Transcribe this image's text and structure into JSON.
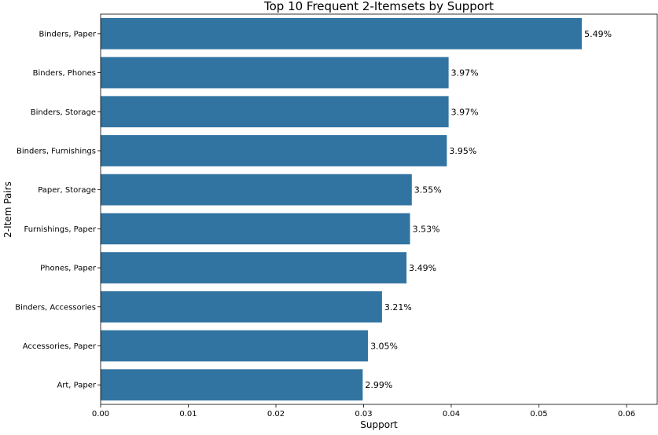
{
  "chart_data": {
    "type": "bar",
    "orientation": "horizontal",
    "title": "Top 10 Frequent 2-Itemsets by Support",
    "xlabel": "Support",
    "ylabel": "2-Item Pairs",
    "xlim": [
      0,
      0.0635
    ],
    "xticks": [
      "0.00",
      "0.01",
      "0.02",
      "0.03",
      "0.04",
      "0.05",
      "0.06"
    ],
    "grid": false,
    "color": "#3274a1",
    "categories": [
      "Binders, Paper",
      "Binders, Phones",
      "Binders, Storage",
      "Binders, Furnishings",
      "Paper, Storage",
      "Furnishings, Paper",
      "Phones, Paper",
      "Binders, Accessories",
      "Accessories, Paper",
      "Art, Paper"
    ],
    "values": [
      0.0549,
      0.0397,
      0.0397,
      0.0395,
      0.0355,
      0.0353,
      0.0349,
      0.0321,
      0.0305,
      0.0299
    ],
    "data_labels": [
      "5.49%",
      "3.97%",
      "3.97%",
      "3.95%",
      "3.55%",
      "3.53%",
      "3.49%",
      "3.21%",
      "3.05%",
      "2.99%"
    ]
  }
}
